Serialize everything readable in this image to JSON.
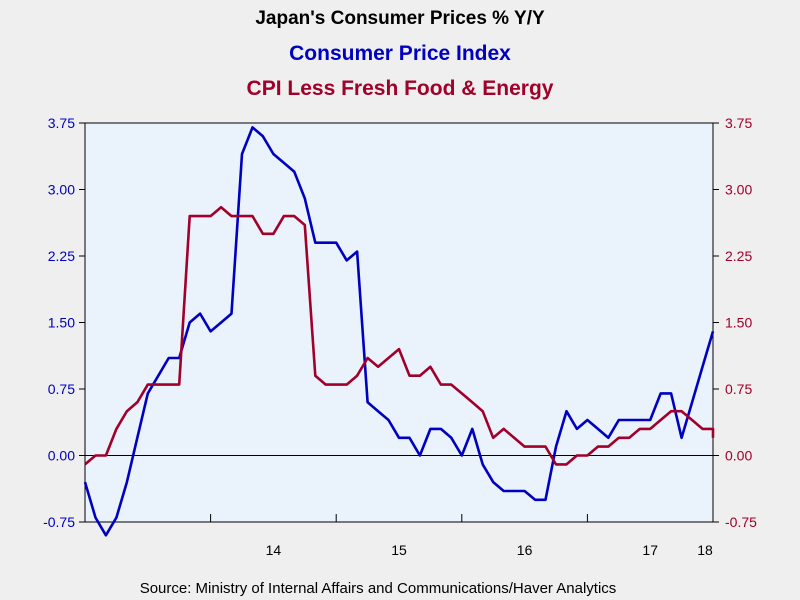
{
  "chart_data": {
    "type": "line",
    "title": "Japan's Consumer Prices % Y/Y",
    "source": "Source:  Ministry of Internal Affairs and Communications/Haver Analytics",
    "colors": {
      "cpi": "#0000c0",
      "core": "#a0002a",
      "plot_bg": "#eaf2fb",
      "page_bg": "#efefef"
    },
    "y_left": {
      "min": -0.75,
      "max": 3.75,
      "ticks": [
        "-0.75",
        "0.00",
        "0.75",
        "1.50",
        "2.25",
        "3.00",
        "3.75"
      ]
    },
    "y_right": {
      "min": -0.75,
      "max": 3.75,
      "ticks": [
        "-0.75",
        "0.00",
        "0.75",
        "1.50",
        "2.25",
        "3.00",
        "3.75"
      ]
    },
    "x_range": {
      "start": "2013-01",
      "end": "2018-01"
    },
    "x_ticks": [
      "14",
      "15",
      "16",
      "17",
      "18"
    ],
    "zero_line": true,
    "grid": false,
    "series": [
      {
        "name": "Consumer Price Index",
        "axis": "left",
        "points": [
          [
            "2013-01",
            -0.3
          ],
          [
            "2013-02",
            -0.7
          ],
          [
            "2013-03",
            -0.9
          ],
          [
            "2013-04",
            -0.7
          ],
          [
            "2013-05",
            -0.3
          ],
          [
            "2013-06",
            0.2
          ],
          [
            "2013-07",
            0.7
          ],
          [
            "2013-08",
            0.9
          ],
          [
            "2013-09",
            1.1
          ],
          [
            "2013-10",
            1.1
          ],
          [
            "2013-11",
            1.5
          ],
          [
            "2013-12",
            1.6
          ],
          [
            "2014-01",
            1.4
          ],
          [
            "2014-02",
            1.5
          ],
          [
            "2014-03",
            1.6
          ],
          [
            "2014-04",
            3.4
          ],
          [
            "2014-05",
            3.7
          ],
          [
            "2014-06",
            3.6
          ],
          [
            "2014-07",
            3.4
          ],
          [
            "2014-08",
            3.3
          ],
          [
            "2014-09",
            3.2
          ],
          [
            "2014-10",
            2.9
          ],
          [
            "2014-11",
            2.4
          ],
          [
            "2014-12",
            2.4
          ],
          [
            "2015-01",
            2.4
          ],
          [
            "2015-02",
            2.2
          ],
          [
            "2015-03",
            2.3
          ],
          [
            "2015-04",
            0.6
          ],
          [
            "2015-05",
            0.5
          ],
          [
            "2015-06",
            0.4
          ],
          [
            "2015-07",
            0.2
          ],
          [
            "2015-08",
            0.2
          ],
          [
            "2015-09",
            0.0
          ],
          [
            "2015-10",
            0.3
          ],
          [
            "2015-11",
            0.3
          ],
          [
            "2015-12",
            0.2
          ],
          [
            "2016-01",
            0.0
          ],
          [
            "2016-02",
            0.3
          ],
          [
            "2016-03",
            -0.1
          ],
          [
            "2016-04",
            -0.3
          ],
          [
            "2016-05",
            -0.4
          ],
          [
            "2016-06",
            -0.4
          ],
          [
            "2016-07",
            -0.4
          ],
          [
            "2016-08",
            -0.5
          ],
          [
            "2016-09",
            -0.5
          ],
          [
            "2016-10",
            0.1
          ],
          [
            "2016-11",
            0.5
          ],
          [
            "2016-12",
            0.3
          ],
          [
            "2017-01",
            0.4
          ],
          [
            "2017-02",
            0.3
          ],
          [
            "2017-03",
            0.2
          ],
          [
            "2017-04",
            0.4
          ],
          [
            "2017-05",
            0.4
          ],
          [
            "2017-06",
            0.4
          ],
          [
            "2017-07",
            0.4
          ],
          [
            "2017-08",
            0.7
          ],
          [
            "2017-09",
            0.7
          ],
          [
            "2017-10",
            0.2
          ],
          [
            "2017-11",
            0.6
          ],
          [
            "2017-12",
            1.0
          ],
          [
            "2018-01",
            1.4
          ]
        ]
      },
      {
        "name": "CPI Less Fresh Food & Energy",
        "axis": "right",
        "points": [
          [
            "2013-01",
            -0.1
          ],
          [
            "2013-02",
            0.0
          ],
          [
            "2013-03",
            0.0
          ],
          [
            "2013-04",
            0.3
          ],
          [
            "2013-05",
            0.5
          ],
          [
            "2013-06",
            0.6
          ],
          [
            "2013-07",
            0.8
          ],
          [
            "2013-08",
            0.8
          ],
          [
            "2013-09",
            0.8
          ],
          [
            "2013-10",
            0.8
          ],
          [
            "2013-11",
            2.7
          ],
          [
            "2013-12",
            2.7
          ],
          [
            "2014-01",
            2.7
          ],
          [
            "2014-02",
            2.8
          ],
          [
            "2014-03",
            2.7
          ],
          [
            "2014-04",
            2.7
          ],
          [
            "2014-05",
            2.7
          ],
          [
            "2014-06",
            2.5
          ],
          [
            "2014-07",
            2.5
          ],
          [
            "2014-08",
            2.7
          ],
          [
            "2014-09",
            2.7
          ],
          [
            "2014-10",
            2.6
          ],
          [
            "2014-11",
            0.9
          ],
          [
            "2014-12",
            0.8
          ],
          [
            "2015-01",
            0.8
          ],
          [
            "2015-02",
            0.8
          ],
          [
            "2015-03",
            0.9
          ],
          [
            "2015-04",
            1.1
          ],
          [
            "2015-05",
            1.0
          ],
          [
            "2015-06",
            1.1
          ],
          [
            "2015-07",
            1.2
          ],
          [
            "2015-08",
            0.9
          ],
          [
            "2015-09",
            0.9
          ],
          [
            "2015-10",
            1.0
          ],
          [
            "2015-11",
            0.8
          ],
          [
            "2015-12",
            0.8
          ],
          [
            "2016-01",
            0.7
          ],
          [
            "2016-02",
            0.6
          ],
          [
            "2016-03",
            0.5
          ],
          [
            "2016-04",
            0.2
          ],
          [
            "2016-05",
            0.3
          ],
          [
            "2016-06",
            0.2
          ],
          [
            "2016-07",
            0.1
          ],
          [
            "2016-08",
            0.1
          ],
          [
            "2016-09",
            0.1
          ],
          [
            "2016-10",
            -0.1
          ],
          [
            "2016-11",
            -0.1
          ],
          [
            "2016-12",
            0.0
          ],
          [
            "2017-01",
            0.0
          ],
          [
            "2017-02",
            0.1
          ],
          [
            "2017-03",
            0.1
          ],
          [
            "2017-04",
            0.2
          ],
          [
            "2017-05",
            0.2
          ],
          [
            "2017-06",
            0.3
          ],
          [
            "2017-07",
            0.3
          ],
          [
            "2017-08",
            0.4
          ],
          [
            "2017-09",
            0.5
          ],
          [
            "2017-10",
            0.5
          ],
          [
            "2017-11",
            0.4
          ],
          [
            "2017-12",
            0.3
          ],
          [
            "2018-01",
            0.3
          ],
          [
            "2018-02",
            0.2
          ]
        ]
      }
    ]
  }
}
